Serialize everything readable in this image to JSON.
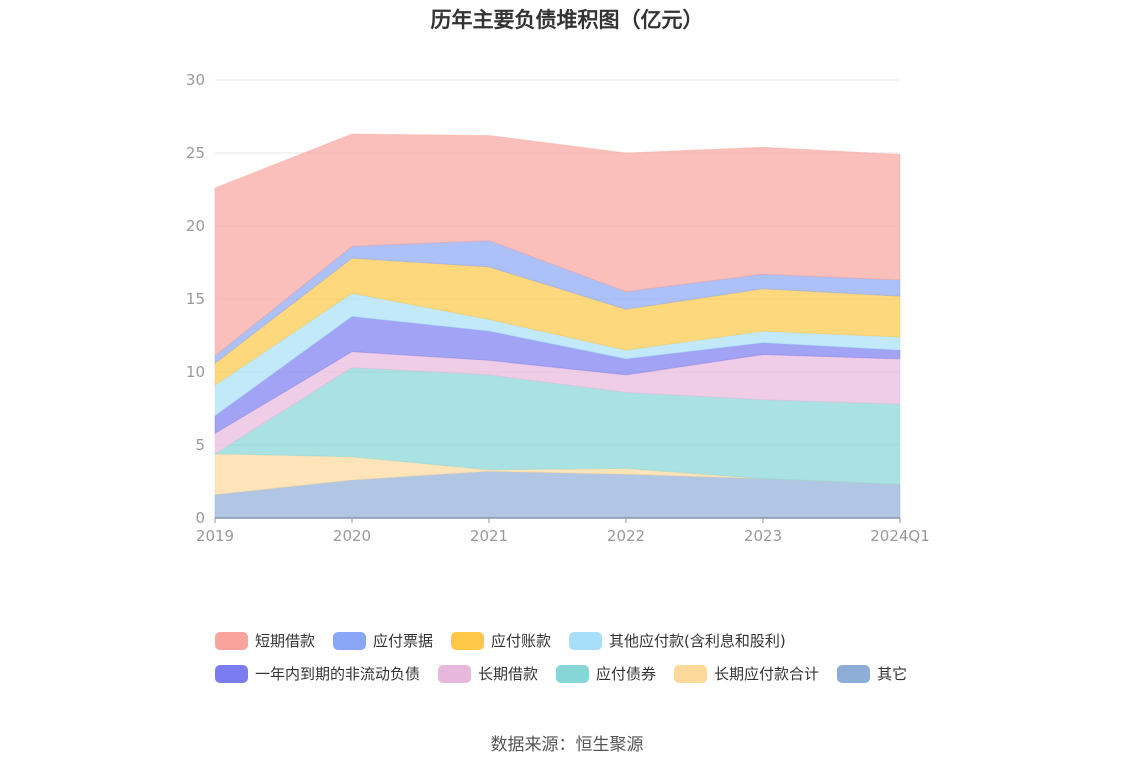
{
  "chart_data": {
    "type": "area",
    "stacked": true,
    "title": "历年主要负债堆积图（亿元）",
    "categories": [
      "2019",
      "2020",
      "2021",
      "2022",
      "2023",
      "2024Q1"
    ],
    "ylim": [
      0,
      30
    ],
    "yticks": [
      "0",
      "5",
      "10",
      "15",
      "20",
      "25",
      "30"
    ],
    "grid": true,
    "legend_position": "bottom",
    "series": [
      {
        "name": "其它",
        "color": "#8eaed8",
        "values": [
          1.6,
          2.6,
          3.2,
          3.0,
          2.7,
          2.3
        ]
      },
      {
        "name": "长期应付款合计",
        "color": "#fdd99a",
        "values": [
          2.8,
          1.6,
          0.1,
          0.4,
          0.0,
          0.0
        ]
      },
      {
        "name": "应付债券",
        "color": "#86d6d8",
        "values": [
          0.0,
          6.1,
          6.5,
          5.2,
          5.4,
          5.5
        ]
      },
      {
        "name": "长期借款",
        "color": "#e8b8dc",
        "values": [
          1.4,
          1.1,
          1.0,
          1.2,
          3.1,
          3.1
        ]
      },
      {
        "name": "一年内到期的非流动负债",
        "color": "#7a7cf0",
        "values": [
          1.2,
          2.4,
          2.0,
          1.1,
          0.8,
          0.6
        ]
      },
      {
        "name": "其他应付款(含利息和股利)",
        "color": "#a8dff8",
        "values": [
          2.1,
          1.6,
          0.8,
          0.6,
          0.8,
          0.9
        ]
      },
      {
        "name": "应付账款",
        "color": "#fdc845",
        "values": [
          1.5,
          2.4,
          3.6,
          2.8,
          2.9,
          2.8
        ]
      },
      {
        "name": "应付票据",
        "color": "#8aa6f6",
        "values": [
          0.5,
          0.8,
          1.8,
          1.2,
          1.0,
          1.1
        ]
      },
      {
        "name": "短期借款",
        "color": "#f8a49c",
        "values": [
          11.5,
          7.7,
          7.2,
          9.5,
          8.7,
          8.6
        ]
      }
    ]
  },
  "legend_rows": [
    [
      "短期借款",
      "应付票据",
      "应付账款",
      "其他应付款(含利息和股利)"
    ],
    [
      "一年内到期的非流动负债",
      "长期借款",
      "应付债券",
      "长期应付款合计",
      "其它"
    ]
  ],
  "source_text": "数据来源：恒生聚源"
}
